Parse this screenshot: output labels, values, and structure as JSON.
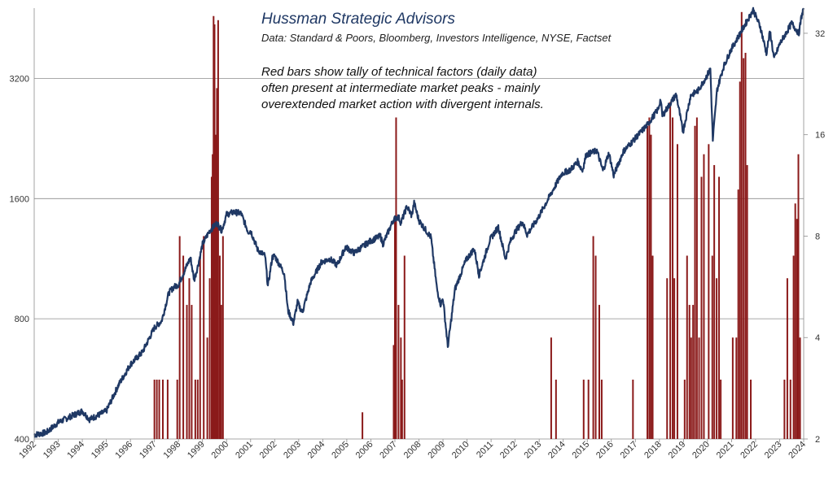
{
  "chart_data": {
    "type": "line",
    "title": "Hussman Strategic Advisors",
    "subtitle": "Data: Standard & Poors, Bloomberg, Investors Intelligence,  NYSE, Factset",
    "annotation_lines": [
      "Red bars show tally of technical factors (daily data)",
      "often present at intermediate market peaks - mainly",
      "overextended market action with divergent internals."
    ],
    "x_tick_labels": [
      "1992",
      "1993",
      "1994",
      "1995",
      "1996",
      "1997",
      "1998",
      "1999",
      "2000",
      "2001",
      "2002",
      "2003",
      "2004",
      "2005",
      "2006",
      "2007",
      "2008",
      "2009",
      "2010",
      "2011",
      "2012",
      "2013",
      "2014",
      "2015",
      "2016",
      "2017",
      "2018",
      "2019",
      "2020",
      "2021",
      "2022",
      "2023",
      "2024"
    ],
    "xlim": [
      1992.0,
      2024.0
    ],
    "y_left": {
      "scale": "log",
      "ylim": [
        400,
        4800
      ],
      "tick_labels": [
        "400",
        "800",
        "1600",
        "3200"
      ],
      "tick_values": [
        400,
        800,
        1600,
        3200
      ]
    },
    "y_right": {
      "scale": "log",
      "ylim": [
        2,
        38
      ],
      "tick_labels": [
        "2",
        "4",
        "8",
        "16",
        "32"
      ],
      "tick_values": [
        2,
        4,
        8,
        16,
        32
      ]
    },
    "gridlines": [
      400,
      800,
      1600,
      3200
    ],
    "series": [
      {
        "type": "line",
        "axis": "left",
        "color": "#1f3864",
        "points": [
          [
            1992.0,
            410
          ],
          [
            1992.5,
            415
          ],
          [
            1993.0,
            440
          ],
          [
            1993.5,
            455
          ],
          [
            1994.0,
            470
          ],
          [
            1994.3,
            448
          ],
          [
            1994.7,
            460
          ],
          [
            1995.0,
            470
          ],
          [
            1995.5,
            545
          ],
          [
            1996.0,
            615
          ],
          [
            1996.5,
            660
          ],
          [
            1997.0,
            760
          ],
          [
            1997.3,
            790
          ],
          [
            1997.6,
            930
          ],
          [
            1997.8,
            960
          ],
          [
            1998.0,
            975
          ],
          [
            1998.5,
            1140
          ],
          [
            1998.65,
            1000
          ],
          [
            1998.8,
            1080
          ],
          [
            1999.0,
            1230
          ],
          [
            1999.3,
            1330
          ],
          [
            1999.6,
            1390
          ],
          [
            1999.8,
            1330
          ],
          [
            2000.0,
            1460
          ],
          [
            2000.3,
            1480
          ],
          [
            2000.6,
            1470
          ],
          [
            2000.9,
            1320
          ],
          [
            2001.0,
            1330
          ],
          [
            2001.3,
            1190
          ],
          [
            2001.6,
            1150
          ],
          [
            2001.72,
            965
          ],
          [
            2001.9,
            1140
          ],
          [
            2002.0,
            1150
          ],
          [
            2002.4,
            1040
          ],
          [
            2002.55,
            840
          ],
          [
            2002.78,
            780
          ],
          [
            2002.95,
            880
          ],
          [
            2003.15,
            830
          ],
          [
            2003.5,
            990
          ],
          [
            2003.95,
            1110
          ],
          [
            2004.3,
            1130
          ],
          [
            2004.6,
            1090
          ],
          [
            2004.95,
            1210
          ],
          [
            2005.3,
            1170
          ],
          [
            2005.95,
            1250
          ],
          [
            2006.4,
            1290
          ],
          [
            2006.5,
            1230
          ],
          [
            2006.95,
            1420
          ],
          [
            2007.15,
            1440
          ],
          [
            2007.25,
            1390
          ],
          [
            2007.5,
            1530
          ],
          [
            2007.7,
            1450
          ],
          [
            2007.8,
            1560
          ],
          [
            2008.0,
            1410
          ],
          [
            2008.3,
            1330
          ],
          [
            2008.5,
            1280
          ],
          [
            2008.75,
            950
          ],
          [
            2008.9,
            870
          ],
          [
            2009.0,
            900
          ],
          [
            2009.2,
            680
          ],
          [
            2009.5,
            950
          ],
          [
            2009.95,
            1120
          ],
          [
            2010.3,
            1200
          ],
          [
            2010.5,
            1030
          ],
          [
            2010.95,
            1260
          ],
          [
            2011.3,
            1360
          ],
          [
            2011.6,
            1130
          ],
          [
            2011.8,
            1250
          ],
          [
            2012.0,
            1320
          ],
          [
            2012.3,
            1400
          ],
          [
            2012.5,
            1300
          ],
          [
            2012.95,
            1430
          ],
          [
            2013.5,
            1650
          ],
          [
            2013.95,
            1850
          ],
          [
            2014.3,
            1890
          ],
          [
            2014.6,
            1980
          ],
          [
            2014.8,
            1880
          ],
          [
            2014.95,
            2060
          ],
          [
            2015.4,
            2110
          ],
          [
            2015.65,
            1880
          ],
          [
            2015.9,
            2080
          ],
          [
            2016.1,
            1830
          ],
          [
            2016.5,
            2100
          ],
          [
            2016.95,
            2250
          ],
          [
            2017.5,
            2450
          ],
          [
            2017.95,
            2680
          ],
          [
            2018.05,
            2840
          ],
          [
            2018.12,
            2580
          ],
          [
            2018.7,
            2920
          ],
          [
            2018.98,
            2350
          ],
          [
            2019.3,
            2900
          ],
          [
            2019.6,
            2980
          ],
          [
            2019.95,
            3230
          ],
          [
            2020.12,
            3380
          ],
          [
            2020.22,
            2240
          ],
          [
            2020.4,
            3000
          ],
          [
            2020.65,
            3400
          ],
          [
            2020.95,
            3750
          ],
          [
            2021.5,
            4300
          ],
          [
            2021.9,
            4750
          ],
          [
            2022.2,
            4300
          ],
          [
            2022.45,
            3700
          ],
          [
            2022.6,
            4200
          ],
          [
            2022.77,
            3580
          ],
          [
            2023.0,
            3900
          ],
          [
            2023.5,
            4400
          ],
          [
            2023.8,
            4150
          ],
          [
            2023.9,
            4550
          ],
          [
            2024.0,
            4800
          ]
        ]
      },
      {
        "type": "bar",
        "axis": "right",
        "color": "#8b1a1a",
        "points": [
          [
            1997.0,
            3
          ],
          [
            1997.1,
            3
          ],
          [
            1997.2,
            3
          ],
          [
            1997.35,
            3
          ],
          [
            1997.55,
            3
          ],
          [
            1997.95,
            3
          ],
          [
            1998.05,
            8
          ],
          [
            1998.2,
            7
          ],
          [
            1998.35,
            5
          ],
          [
            1998.45,
            6
          ],
          [
            1998.55,
            5
          ],
          [
            1998.7,
            3
          ],
          [
            1998.8,
            3
          ],
          [
            1998.9,
            7
          ],
          [
            1999.05,
            8
          ],
          [
            1999.2,
            4
          ],
          [
            1999.3,
            6
          ],
          [
            1999.38,
            12
          ],
          [
            1999.42,
            14
          ],
          [
            1999.46,
            36
          ],
          [
            1999.5,
            34
          ],
          [
            1999.55,
            16
          ],
          [
            1999.6,
            22
          ],
          [
            1999.65,
            35
          ],
          [
            1999.72,
            7
          ],
          [
            1999.78,
            5
          ],
          [
            1999.85,
            8
          ],
          [
            2005.65,
            2.4
          ],
          [
            2006.95,
            3.8
          ],
          [
            2007.0,
            9
          ],
          [
            2007.05,
            18
          ],
          [
            2007.15,
            5
          ],
          [
            2007.25,
            4
          ],
          [
            2007.3,
            3
          ],
          [
            2007.4,
            7
          ],
          [
            2013.5,
            4
          ],
          [
            2013.7,
            3
          ],
          [
            2014.85,
            3
          ],
          [
            2015.05,
            3
          ],
          [
            2015.25,
            8
          ],
          [
            2015.35,
            7
          ],
          [
            2015.5,
            5
          ],
          [
            2015.6,
            3
          ],
          [
            2016.9,
            3
          ],
          [
            2017.5,
            17
          ],
          [
            2017.58,
            18
          ],
          [
            2017.65,
            16
          ],
          [
            2017.72,
            7
          ],
          [
            2018.32,
            6
          ],
          [
            2018.45,
            20
          ],
          [
            2018.55,
            18
          ],
          [
            2018.62,
            6
          ],
          [
            2018.75,
            15
          ],
          [
            2019.05,
            3
          ],
          [
            2019.15,
            7
          ],
          [
            2019.25,
            5
          ],
          [
            2019.32,
            4
          ],
          [
            2019.4,
            5
          ],
          [
            2019.48,
            17
          ],
          [
            2019.56,
            18
          ],
          [
            2019.65,
            4
          ],
          [
            2019.75,
            12
          ],
          [
            2019.85,
            14
          ],
          [
            2020.05,
            15
          ],
          [
            2020.2,
            7
          ],
          [
            2020.28,
            13
          ],
          [
            2020.38,
            6
          ],
          [
            2020.48,
            12
          ],
          [
            2020.55,
            3
          ],
          [
            2021.05,
            4
          ],
          [
            2021.2,
            4
          ],
          [
            2021.28,
            11
          ],
          [
            2021.35,
            23
          ],
          [
            2021.42,
            37
          ],
          [
            2021.5,
            27
          ],
          [
            2021.58,
            28
          ],
          [
            2021.65,
            13
          ],
          [
            2021.8,
            3
          ],
          [
            2023.2,
            3
          ],
          [
            2023.32,
            6
          ],
          [
            2023.45,
            3
          ],
          [
            2023.58,
            7
          ],
          [
            2023.65,
            10
          ],
          [
            2023.72,
            9
          ],
          [
            2023.78,
            14
          ],
          [
            2023.85,
            4
          ]
        ]
      }
    ],
    "grid": true,
    "legend": "none"
  }
}
